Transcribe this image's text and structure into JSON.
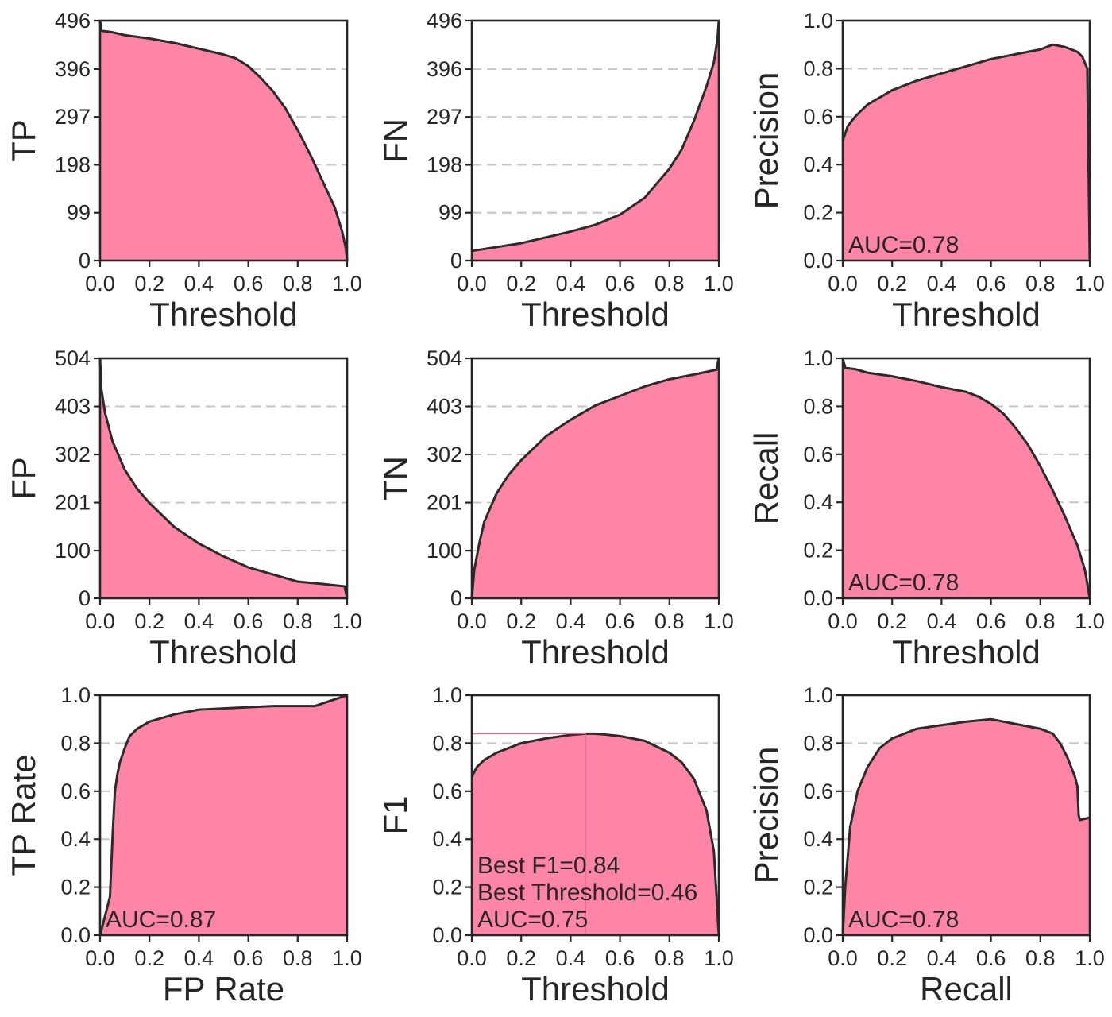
{
  "colors": {
    "fill": "#ff85a6",
    "line": "#2b2b2b",
    "marker": "#e8648e",
    "grid": "#c9c9c9"
  },
  "chart_data": [
    {
      "id": "tp",
      "type": "area",
      "xlabel": "Threshold",
      "ylabel": "TP",
      "xlim": [
        0,
        1
      ],
      "ylim": [
        0,
        496
      ],
      "xticks": [
        "0.0",
        "0.2",
        "0.4",
        "0.6",
        "0.8",
        "1.0"
      ],
      "yticks": [
        0,
        99,
        198,
        297,
        396,
        496
      ],
      "ytick_labels": [
        "0",
        "99",
        "198",
        "297",
        "396",
        "496"
      ],
      "grid": "horizontal dashed",
      "x": [
        0,
        0.005,
        0.05,
        0.1,
        0.2,
        0.3,
        0.4,
        0.5,
        0.55,
        0.6,
        0.65,
        0.7,
        0.75,
        0.8,
        0.85,
        0.9,
        0.95,
        0.98,
        0.995,
        1.0
      ],
      "y": [
        496,
        475,
        472,
        466,
        459,
        450,
        438,
        426,
        418,
        402,
        378,
        350,
        315,
        270,
        220,
        165,
        110,
        60,
        25,
        0
      ]
    },
    {
      "id": "fn",
      "type": "area",
      "xlabel": "Threshold",
      "ylabel": "FN",
      "xlim": [
        0,
        1
      ],
      "ylim": [
        0,
        496
      ],
      "xticks": [
        "0.0",
        "0.2",
        "0.4",
        "0.6",
        "0.8",
        "1.0"
      ],
      "yticks": [
        0,
        99,
        198,
        297,
        396,
        496
      ],
      "ytick_labels": [
        "0",
        "99",
        "198",
        "297",
        "396",
        "496"
      ],
      "grid": "horizontal dashed",
      "x": [
        0,
        0.1,
        0.2,
        0.3,
        0.4,
        0.5,
        0.6,
        0.7,
        0.75,
        0.8,
        0.85,
        0.9,
        0.95,
        0.98,
        0.995,
        1.0
      ],
      "y": [
        20,
        28,
        36,
        48,
        60,
        74,
        95,
        130,
        160,
        190,
        230,
        290,
        360,
        410,
        460,
        496
      ]
    },
    {
      "id": "precision-threshold",
      "type": "area",
      "xlabel": "Threshold",
      "ylabel": "Precision",
      "xlim": [
        0,
        1
      ],
      "ylim": [
        0,
        1
      ],
      "xticks": [
        "0.0",
        "0.2",
        "0.4",
        "0.6",
        "0.8",
        "1.0"
      ],
      "yticks": [
        0,
        0.2,
        0.4,
        0.6,
        0.8,
        1.0
      ],
      "ytick_labels": [
        "0.0",
        "0.2",
        "0.4",
        "0.6",
        "0.8",
        "1.0"
      ],
      "grid": "horizontal dashed",
      "annotations": [
        "AUC=0.78"
      ],
      "x": [
        0,
        0.02,
        0.05,
        0.1,
        0.2,
        0.3,
        0.4,
        0.5,
        0.6,
        0.7,
        0.8,
        0.85,
        0.9,
        0.95,
        0.97,
        0.99,
        1.0
      ],
      "y": [
        0.5,
        0.56,
        0.6,
        0.65,
        0.71,
        0.75,
        0.78,
        0.81,
        0.84,
        0.86,
        0.88,
        0.9,
        0.89,
        0.87,
        0.85,
        0.8,
        0.0
      ]
    },
    {
      "id": "fp",
      "type": "area",
      "xlabel": "Threshold",
      "ylabel": "FP",
      "xlim": [
        0,
        1
      ],
      "ylim": [
        0,
        504
      ],
      "xticks": [
        "0.0",
        "0.2",
        "0.4",
        "0.6",
        "0.8",
        "1.0"
      ],
      "yticks": [
        0,
        100,
        201,
        302,
        403,
        504
      ],
      "ytick_labels": [
        "0",
        "100",
        "201",
        "302",
        "403",
        "504"
      ],
      "grid": "horizontal dashed",
      "x": [
        0,
        0.005,
        0.02,
        0.05,
        0.1,
        0.15,
        0.2,
        0.3,
        0.4,
        0.5,
        0.6,
        0.7,
        0.8,
        0.9,
        0.99,
        1.0
      ],
      "y": [
        504,
        440,
        390,
        330,
        270,
        230,
        200,
        150,
        115,
        88,
        65,
        50,
        35,
        30,
        25,
        0
      ]
    },
    {
      "id": "tn",
      "type": "area",
      "xlabel": "Threshold",
      "ylabel": "TN",
      "xlim": [
        0,
        1
      ],
      "ylim": [
        0,
        504
      ],
      "xticks": [
        "0.0",
        "0.2",
        "0.4",
        "0.6",
        "0.8",
        "1.0"
      ],
      "yticks": [
        0,
        100,
        201,
        302,
        403,
        504
      ],
      "ytick_labels": [
        "0",
        "100",
        "201",
        "302",
        "403",
        "504"
      ],
      "grid": "horizontal dashed",
      "x": [
        0,
        0.01,
        0.03,
        0.05,
        0.1,
        0.15,
        0.2,
        0.3,
        0.4,
        0.5,
        0.6,
        0.7,
        0.8,
        0.9,
        0.99,
        1.0
      ],
      "y": [
        0,
        60,
        115,
        160,
        220,
        260,
        290,
        340,
        375,
        405,
        425,
        445,
        460,
        470,
        480,
        504
      ]
    },
    {
      "id": "recall-threshold",
      "type": "area",
      "xlabel": "Threshold",
      "ylabel": "Recall",
      "xlim": [
        0,
        1
      ],
      "ylim": [
        0,
        1
      ],
      "xticks": [
        "0.0",
        "0.2",
        "0.4",
        "0.6",
        "0.8",
        "1.0"
      ],
      "yticks": [
        0,
        0.2,
        0.4,
        0.6,
        0.8,
        1.0
      ],
      "ytick_labels": [
        "0.0",
        "0.2",
        "0.4",
        "0.6",
        "0.8",
        "1.0"
      ],
      "grid": "horizontal dashed",
      "annotations": [
        "AUC=0.78"
      ],
      "x": [
        0,
        0.01,
        0.05,
        0.1,
        0.2,
        0.3,
        0.4,
        0.5,
        0.55,
        0.6,
        0.65,
        0.7,
        0.75,
        0.8,
        0.85,
        0.9,
        0.95,
        0.98,
        1.0
      ],
      "y": [
        1.0,
        0.96,
        0.955,
        0.94,
        0.925,
        0.905,
        0.88,
        0.86,
        0.84,
        0.81,
        0.77,
        0.71,
        0.64,
        0.55,
        0.45,
        0.34,
        0.22,
        0.12,
        0.0
      ]
    },
    {
      "id": "roc",
      "type": "area",
      "xlabel": "FP Rate",
      "ylabel": "TP Rate",
      "xlim": [
        0,
        1
      ],
      "ylim": [
        0,
        1
      ],
      "xticks": [
        "0.0",
        "0.2",
        "0.4",
        "0.6",
        "0.8",
        "1.0"
      ],
      "yticks": [
        0,
        0.2,
        0.4,
        0.6,
        0.8,
        1.0
      ],
      "ytick_labels": [
        "0.0",
        "0.2",
        "0.4",
        "0.6",
        "0.8",
        "1.0"
      ],
      "grid": "horizontal dashed",
      "annotations": [
        "AUC=0.87"
      ],
      "x": [
        0,
        0.04,
        0.05,
        0.06,
        0.07,
        0.08,
        0.09,
        0.1,
        0.12,
        0.15,
        0.2,
        0.3,
        0.4,
        0.5,
        0.6,
        0.7,
        0.87,
        1.0
      ],
      "y": [
        0,
        0.16,
        0.4,
        0.6,
        0.67,
        0.72,
        0.75,
        0.78,
        0.83,
        0.86,
        0.89,
        0.92,
        0.94,
        0.945,
        0.95,
        0.955,
        0.955,
        1.0
      ]
    },
    {
      "id": "f1",
      "type": "area",
      "xlabel": "Threshold",
      "ylabel": "F1",
      "xlim": [
        0,
        1
      ],
      "ylim": [
        0,
        1
      ],
      "xticks": [
        "0.0",
        "0.2",
        "0.4",
        "0.6",
        "0.8",
        "1.0"
      ],
      "yticks": [
        0,
        0.2,
        0.4,
        0.6,
        0.8,
        1.0
      ],
      "ytick_labels": [
        "0.0",
        "0.2",
        "0.4",
        "0.6",
        "0.8",
        "1.0"
      ],
      "grid": "horizontal dashed",
      "best_point": {
        "x": 0.46,
        "y": 0.84
      },
      "annotations": [
        "Best F1=0.84",
        "Best Threshold=0.46",
        "AUC=0.75"
      ],
      "x": [
        0,
        0.02,
        0.05,
        0.1,
        0.2,
        0.3,
        0.4,
        0.46,
        0.5,
        0.6,
        0.7,
        0.8,
        0.85,
        0.9,
        0.95,
        0.98,
        1.0
      ],
      "y": [
        0.66,
        0.7,
        0.73,
        0.76,
        0.8,
        0.82,
        0.835,
        0.84,
        0.84,
        0.83,
        0.81,
        0.76,
        0.72,
        0.65,
        0.52,
        0.35,
        0.0
      ]
    },
    {
      "id": "pr",
      "type": "area",
      "xlabel": "Recall",
      "ylabel": "Precision",
      "xlim": [
        0,
        1
      ],
      "ylim": [
        0,
        1
      ],
      "xticks": [
        "0.0",
        "0.2",
        "0.4",
        "0.6",
        "0.8",
        "1.0"
      ],
      "yticks": [
        0,
        0.2,
        0.4,
        0.6,
        0.8,
        1.0
      ],
      "ytick_labels": [
        "0.0",
        "0.2",
        "0.4",
        "0.6",
        "0.8",
        "1.0"
      ],
      "grid": "horizontal dashed",
      "annotations": [
        "AUC=0.78"
      ],
      "x": [
        0,
        0.01,
        0.03,
        0.06,
        0.1,
        0.15,
        0.2,
        0.3,
        0.4,
        0.5,
        0.6,
        0.7,
        0.8,
        0.85,
        0.88,
        0.91,
        0.94,
        0.95,
        0.955,
        0.96,
        1.0
      ],
      "y": [
        0.0,
        0.2,
        0.45,
        0.6,
        0.7,
        0.78,
        0.82,
        0.86,
        0.875,
        0.89,
        0.9,
        0.88,
        0.86,
        0.84,
        0.8,
        0.74,
        0.66,
        0.62,
        0.5,
        0.48,
        0.49
      ]
    }
  ]
}
